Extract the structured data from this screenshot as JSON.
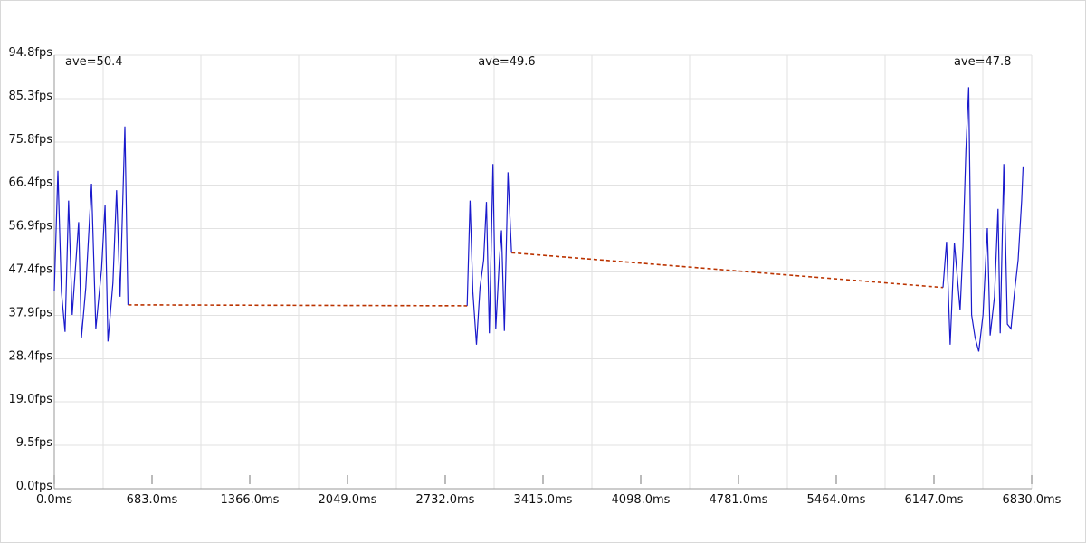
{
  "chart_data": {
    "type": "line",
    "title": "",
    "xlabel": "",
    "ylabel": "",
    "xlim": [
      0,
      6830
    ],
    "ylim": [
      0,
      94.8
    ],
    "y_ticks": [
      {
        "value": 0.0,
        "label": "0.0fps"
      },
      {
        "value": 9.5,
        "label": "9.5fps"
      },
      {
        "value": 19.0,
        "label": "19.0fps"
      },
      {
        "value": 28.4,
        "label": "28.4fps"
      },
      {
        "value": 37.9,
        "label": "37.9fps"
      },
      {
        "value": 47.4,
        "label": "47.4fps"
      },
      {
        "value": 56.9,
        "label": "56.9fps"
      },
      {
        "value": 66.4,
        "label": "66.4fps"
      },
      {
        "value": 75.8,
        "label": "75.8fps"
      },
      {
        "value": 85.3,
        "label": "85.3fps"
      },
      {
        "value": 94.8,
        "label": "94.8fps"
      }
    ],
    "x_ticks": [
      {
        "value": 0,
        "label": "0.0ms"
      },
      {
        "value": 683,
        "label": "683.0ms"
      },
      {
        "value": 1366,
        "label": "1366.0ms"
      },
      {
        "value": 2049,
        "label": "2049.0ms"
      },
      {
        "value": 2732,
        "label": "2732.0ms"
      },
      {
        "value": 3415,
        "label": "3415.0ms"
      },
      {
        "value": 4098,
        "label": "4098.0ms"
      },
      {
        "value": 4781,
        "label": "4781.0ms"
      },
      {
        "value": 5464,
        "label": "5464.0ms"
      },
      {
        "value": 6147,
        "label": "6147.0ms"
      },
      {
        "value": 6830,
        "label": "6830.0ms"
      }
    ],
    "grid": true,
    "segments": [
      {
        "ave_label": "ave=50.4",
        "color": "#1a1acc",
        "points": [
          [
            0,
            43.2
          ],
          [
            25,
            69.5
          ],
          [
            50,
            43.0
          ],
          [
            75,
            34.3
          ],
          [
            100,
            63.0
          ],
          [
            125,
            38.0
          ],
          [
            170,
            58.3
          ],
          [
            190,
            33.0
          ],
          [
            220,
            44.0
          ],
          [
            260,
            66.7
          ],
          [
            290,
            35.0
          ],
          [
            330,
            48.0
          ],
          [
            355,
            62.0
          ],
          [
            375,
            32.2
          ],
          [
            410,
            45.0
          ],
          [
            435,
            65.3
          ],
          [
            460,
            42.0
          ],
          [
            493,
            79.2
          ],
          [
            515,
            40.2
          ]
        ]
      },
      {
        "ave_label": "ave=49.6",
        "color": "#1a1acc",
        "points": [
          [
            2885,
            40.0
          ],
          [
            2905,
            63.0
          ],
          [
            2925,
            43.0
          ],
          [
            2950,
            31.5
          ],
          [
            2975,
            44.0
          ],
          [
            3000,
            50.0
          ],
          [
            3020,
            62.7
          ],
          [
            3040,
            34.0
          ],
          [
            3065,
            71.0
          ],
          [
            3085,
            35.0
          ],
          [
            3110,
            50.0
          ],
          [
            3125,
            56.5
          ],
          [
            3145,
            34.5
          ],
          [
            3170,
            69.2
          ],
          [
            3195,
            51.6
          ]
        ]
      },
      {
        "ave_label": "ave=47.8",
        "color": "#1a1acc",
        "points": [
          [
            6210,
            44.0
          ],
          [
            6235,
            54.0
          ],
          [
            6260,
            31.5
          ],
          [
            6290,
            53.8
          ],
          [
            6330,
            39.0
          ],
          [
            6350,
            53.0
          ],
          [
            6370,
            74.0
          ],
          [
            6390,
            87.8
          ],
          [
            6410,
            38.0
          ],
          [
            6435,
            33.0
          ],
          [
            6460,
            30.0
          ],
          [
            6490,
            38.0
          ],
          [
            6520,
            57.0
          ],
          [
            6540,
            33.5
          ],
          [
            6570,
            42.0
          ],
          [
            6595,
            61.2
          ],
          [
            6610,
            34.0
          ],
          [
            6635,
            71.0
          ],
          [
            6660,
            36.0
          ],
          [
            6685,
            35.0
          ],
          [
            6710,
            43.0
          ],
          [
            6735,
            50.0
          ],
          [
            6760,
            63.0
          ],
          [
            6770,
            70.5
          ]
        ]
      }
    ],
    "gap_lines": [
      {
        "color": "#bb3300",
        "from": [
          515,
          40.2
        ],
        "to": [
          2885,
          40.0
        ]
      },
      {
        "color": "#bb3300",
        "from": [
          3195,
          51.6
        ],
        "to": [
          6210,
          44.0
        ]
      }
    ]
  }
}
